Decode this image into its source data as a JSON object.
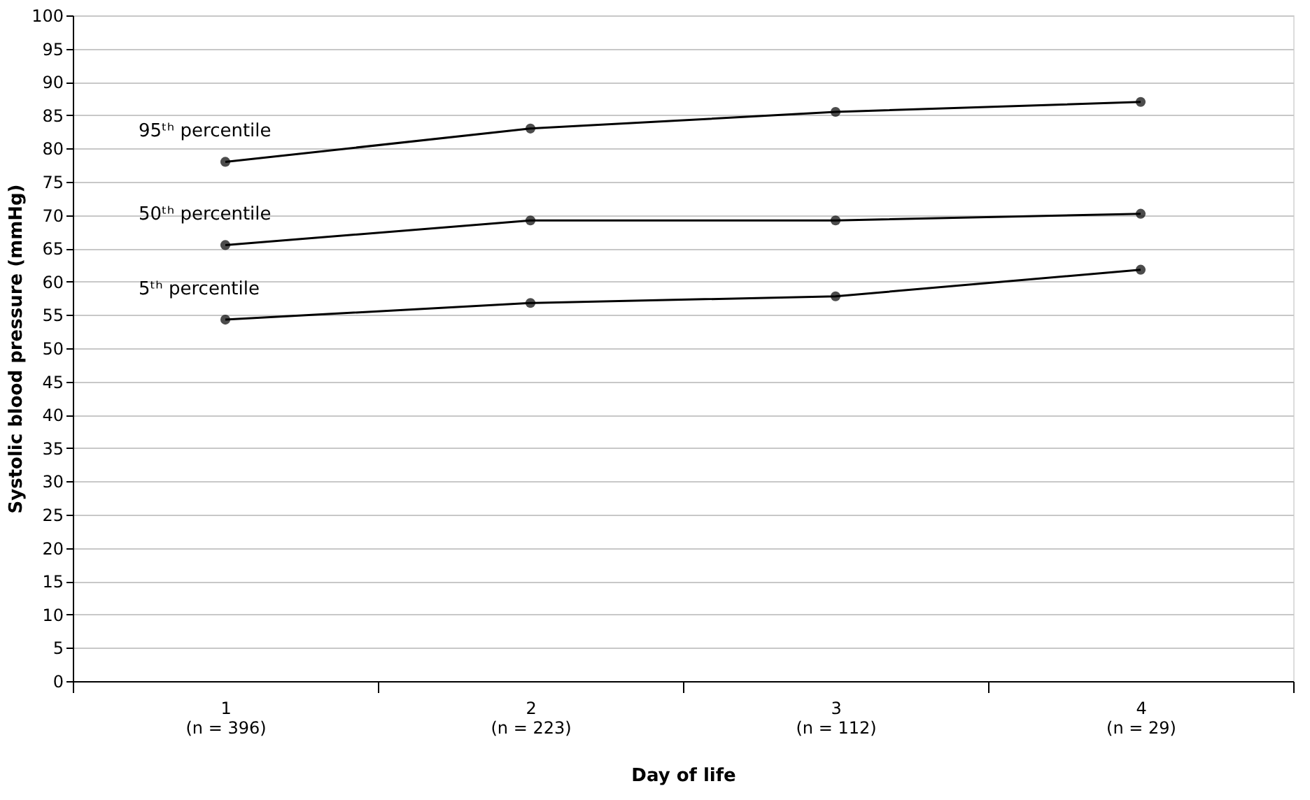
{
  "chart_data": {
    "type": "line",
    "xlabel": "Day of life",
    "ylabel": "Systolic blood pressure (mmHg)",
    "categories": [
      "1\n(n = 396)",
      "2\n(n = 223)",
      "3\n(n = 112)",
      "4\n(n = 29)"
    ],
    "series": [
      {
        "name": "95ᵗʰ percentile",
        "color": "#000000",
        "values": [
          78,
          83,
          85.5,
          87
        ]
      },
      {
        "name": "50ᵗʰ percentile",
        "color": "#000000",
        "values": [
          65.5,
          69.2,
          69.2,
          70.2
        ]
      },
      {
        "name": "5ᵗʰ percentile",
        "color": "#000000",
        "values": [
          54.3,
          56.8,
          57.8,
          61.8
        ]
      }
    ],
    "ylim": [
      0,
      100
    ],
    "yticks": [
      0,
      5,
      10,
      15,
      20,
      25,
      30,
      35,
      40,
      45,
      50,
      55,
      60,
      65,
      70,
      75,
      80,
      85,
      90,
      95,
      100
    ],
    "grid": "y",
    "marker": "circle",
    "line_style": "solid",
    "legend": false
  }
}
